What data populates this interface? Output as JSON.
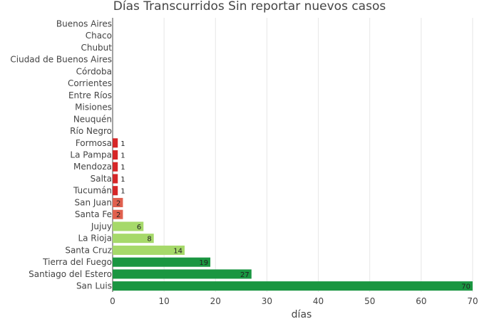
{
  "chart_data": {
    "type": "bar",
    "orientation": "horizontal",
    "title": "Días Transcurridos Sin reportar nuevos casos",
    "xlabel": "días",
    "ylabel": "",
    "xlim": [
      0,
      70
    ],
    "x_ticks": [
      0,
      10,
      20,
      30,
      40,
      50,
      60,
      70
    ],
    "grid": "vertical gridlines on",
    "legend": "none",
    "categories": [
      "Buenos Aires",
      "Chaco",
      "Chubut",
      "Ciudad de Buenos Aires",
      "Córdoba",
      "Corrientes",
      "Entre Ríos",
      "Misiones",
      "Neuquén",
      "Río Negro",
      "Formosa",
      "La Pampa",
      "Mendoza",
      "Salta",
      "Tucumán",
      "San Juan",
      "Santa Fe",
      "Jujuy",
      "La Rioja",
      "Santa Cruz",
      "Tierra del Fuego",
      "Santiago del Estero",
      "San Luis"
    ],
    "values": [
      0,
      0,
      0,
      0,
      0,
      0,
      0,
      0,
      0,
      0,
      1,
      1,
      1,
      1,
      1,
      2,
      2,
      6,
      8,
      14,
      19,
      27,
      70
    ],
    "value_labels": [
      "",
      "",
      "",
      "",
      "",
      "",
      "",
      "",
      "",
      "",
      "1",
      "1",
      "1",
      "1",
      "1",
      "2",
      "2",
      "6",
      "8",
      "14",
      "19",
      "27",
      "70"
    ],
    "bar_colors": [
      "#d62728",
      "#d62728",
      "#d62728",
      "#d62728",
      "#d62728",
      "#d62728",
      "#d62728",
      "#d62728",
      "#d62728",
      "#d62728",
      "#d62728",
      "#d62728",
      "#d62728",
      "#d62728",
      "#d62728",
      "#e0604e",
      "#e0604e",
      "#a6d96a",
      "#a6d96a",
      "#a6d96a",
      "#1a9641",
      "#1a9641",
      "#1a9641"
    ]
  }
}
